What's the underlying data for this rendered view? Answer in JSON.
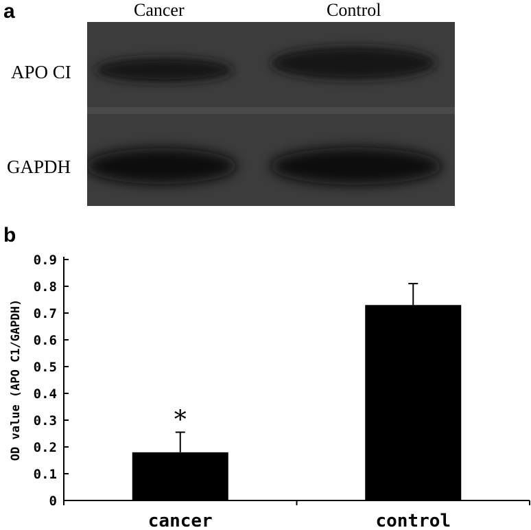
{
  "panel_a": {
    "label": "a",
    "lanes": [
      "Cancer",
      "Control"
    ],
    "rows": [
      "APO CI",
      "GAPDH"
    ]
  },
  "panel_b": {
    "label": "b"
  },
  "chart_data": {
    "type": "bar",
    "categories": [
      "cancer",
      "control"
    ],
    "values": [
      0.18,
      0.73
    ],
    "errors": [
      0.075,
      0.08
    ],
    "annotations": [
      "*",
      ""
    ],
    "title": "",
    "xlabel": "",
    "ylabel": "OD value (APO C1/GAPDH)",
    "ylim": [
      0,
      0.9
    ],
    "yticks": [
      "0",
      "0.1",
      "0.2",
      "0.3",
      "0.4",
      "0.5",
      "0.6",
      "0.7",
      "0.8",
      "0.9"
    ],
    "grid": false,
    "colors": {
      "bar": "#000000",
      "axis": "#000000"
    }
  }
}
